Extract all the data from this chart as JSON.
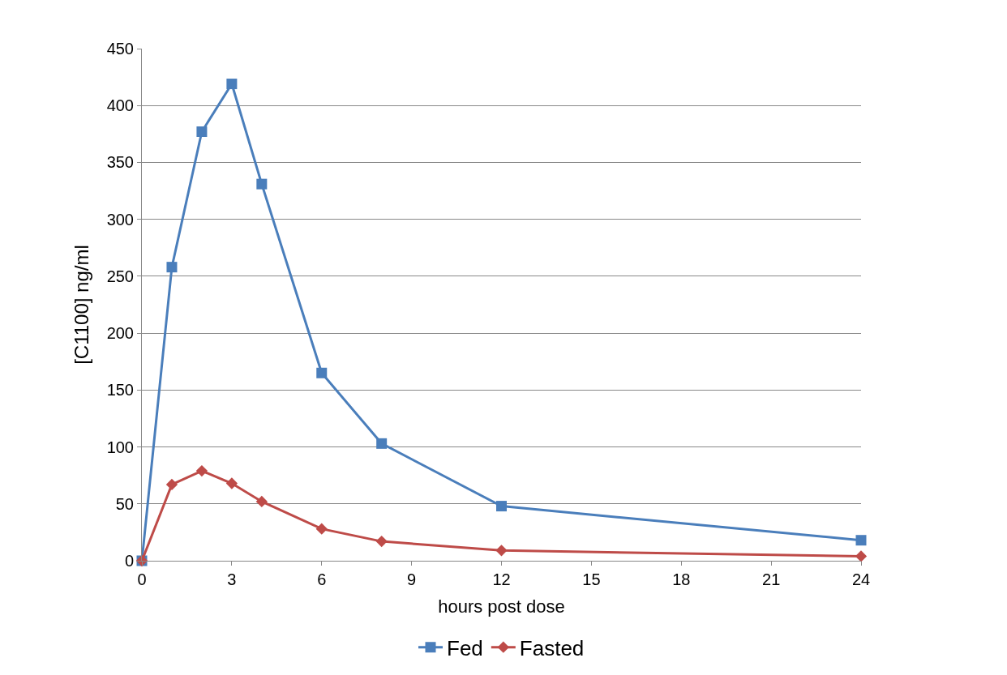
{
  "chart_data": {
    "type": "line",
    "xlabel": "hours post dose",
    "ylabel": "[C1100] ng/ml",
    "x": [
      0,
      1,
      2,
      3,
      4,
      6,
      8,
      12,
      24
    ],
    "series": [
      {
        "name": "Fed",
        "color": "#4a7ebb",
        "marker": "square",
        "values": [
          0,
          258,
          377,
          419,
          331,
          165,
          103,
          48,
          18
        ]
      },
      {
        "name": "Fasted",
        "color": "#be4b48",
        "marker": "diamond",
        "values": [
          0,
          67,
          79,
          68,
          52,
          28,
          17,
          9,
          4
        ]
      }
    ],
    "xlim": [
      0,
      24
    ],
    "xticks": [
      0,
      3,
      6,
      9,
      12,
      15,
      18,
      21,
      24
    ],
    "ylim": [
      0,
      450
    ],
    "yticks": [
      0,
      50,
      100,
      150,
      200,
      250,
      300,
      350,
      400,
      450
    ],
    "grid": "y",
    "legend": "bottom",
    "line_style": "solid"
  }
}
